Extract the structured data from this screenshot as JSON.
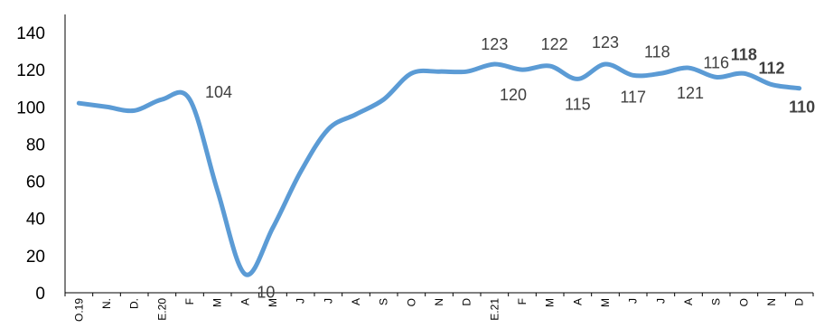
{
  "chart_data": {
    "type": "line",
    "title": "",
    "xlabel": "",
    "ylabel": "",
    "ylim": [
      0,
      140
    ],
    "yticks": [
      0,
      20,
      40,
      60,
      80,
      100,
      120,
      140
    ],
    "grid": false,
    "legend": "none",
    "categories": [
      "O.19",
      "N.",
      "D.",
      "E.20",
      "F",
      "M",
      "A",
      "M",
      "J",
      "J",
      "A",
      "S",
      "O",
      "N",
      "D",
      "E.21",
      "F",
      "M",
      "A",
      "M",
      "J",
      "J",
      "A",
      "S",
      "O",
      "N",
      "D"
    ],
    "series": [
      {
        "color": "#5b9bd5",
        "values": [
          102,
          100,
          98,
          104,
          104,
          55,
          10,
          35,
          65,
          88,
          96,
          104,
          118,
          119,
          119,
          123,
          120,
          122,
          115,
          123,
          117,
          118,
          121,
          116,
          118,
          112,
          110
        ],
        "data_labels": [
          {
            "index": 4,
            "text": "104",
            "bold": false
          },
          {
            "index": 6,
            "text": "10",
            "bold": false
          },
          {
            "index": 15,
            "text": "123",
            "bold": false
          },
          {
            "index": 16,
            "text": "120",
            "bold": false
          },
          {
            "index": 17,
            "text": "122",
            "bold": false
          },
          {
            "index": 18,
            "text": "115",
            "bold": false
          },
          {
            "index": 19,
            "text": "123",
            "bold": false
          },
          {
            "index": 20,
            "text": "117",
            "bold": false
          },
          {
            "index": 21,
            "text": "118",
            "bold": false
          },
          {
            "index": 22,
            "text": "121",
            "bold": false
          },
          {
            "index": 23,
            "text": "116",
            "bold": false
          },
          {
            "index": 24,
            "text": "118",
            "bold": true
          },
          {
            "index": 25,
            "text": "112",
            "bold": true
          },
          {
            "index": 26,
            "text": "110",
            "bold": true
          }
        ]
      }
    ]
  }
}
